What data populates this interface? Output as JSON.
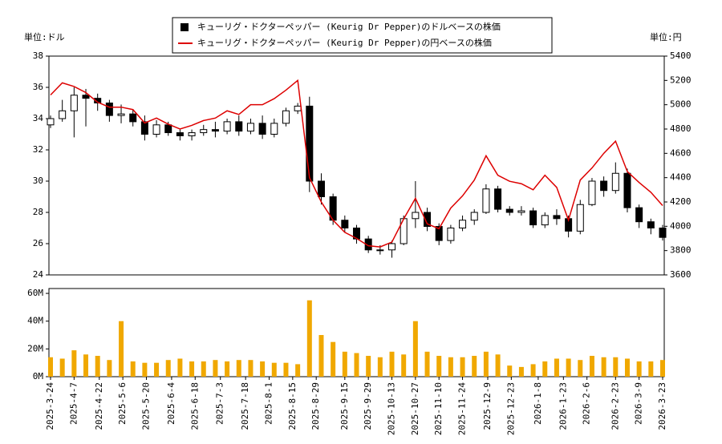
{
  "chart_data": [
    {
      "type": "candlestick",
      "y_label": "単位:ドル",
      "y2_label": "単位:円",
      "x": [
        "2025-3-24",
        "2025-3-31",
        "2025-4-7",
        "2025-4-14",
        "2025-4-21",
        "2025-4-28",
        "2025-5-5",
        "2025-5-12",
        "2025-5-19",
        "2025-5-26",
        "2025-6-2",
        "2025-6-9",
        "2025-6-16",
        "2025-6-23",
        "2025-6-30",
        "2025-7-7",
        "2025-7-14",
        "2025-7-21",
        "2025-7-28",
        "2025-8-4",
        "2025-8-11",
        "2025-8-18",
        "2025-8-25",
        "2025-9-1",
        "2025-9-8",
        "2025-9-15",
        "2025-9-22",
        "2025-9-29",
        "2025-10-6",
        "2025-10-13",
        "2025-10-20",
        "2025-10-27",
        "2025-11-3",
        "2025-11-10",
        "2025-11-17",
        "2025-11-24",
        "2025-12-1",
        "2025-12-8",
        "2025-12-15",
        "2025-12-22",
        "2025-12-29",
        "2026-1-5",
        "2026-1-12",
        "2026-1-19",
        "2026-1-26",
        "2026-2-2",
        "2026-2-9",
        "2026-2-16",
        "2026-2-23",
        "2026-3-2",
        "2026-3-9",
        "2026-3-16",
        "2026-3-23"
      ],
      "xlim": [
        "2025-3-24",
        "2026-3-23"
      ],
      "series": [
        {
          "name": "キューリグ・ドクターペッパー (Keurig Dr Pepper)のドルベースの株価",
          "color": "#000000",
          "open": [
            33.6,
            34.0,
            34.5,
            35.5,
            35.3,
            35.0,
            34.2,
            34.3,
            33.8,
            33.0,
            33.6,
            33.1,
            32.9,
            33.1,
            33.3,
            33.2,
            33.8,
            33.2,
            33.7,
            33.0,
            33.7,
            34.5,
            34.8,
            30.0,
            29.0,
            27.5,
            27.0,
            26.3,
            25.6,
            25.6,
            26.0,
            27.6,
            28.0,
            27.1,
            26.2,
            27.0,
            27.5,
            28.0,
            29.5,
            28.2,
            28.0,
            28.1,
            27.2,
            27.8,
            27.6,
            26.8,
            28.5,
            30.0,
            29.4,
            30.5,
            28.3,
            27.4,
            27.0
          ],
          "high": [
            34.2,
            35.2,
            36.0,
            35.9,
            35.6,
            35.2,
            34.9,
            34.6,
            34.2,
            33.9,
            33.8,
            33.3,
            33.3,
            33.6,
            33.8,
            34.0,
            34.2,
            34.0,
            34.2,
            34.0,
            34.7,
            35.0,
            35.4,
            30.5,
            29.2,
            27.8,
            27.2,
            26.5,
            25.9,
            26.2,
            27.8,
            30.0,
            28.3,
            27.3,
            27.2,
            27.8,
            28.2,
            29.8,
            29.7,
            28.4,
            28.4,
            28.3,
            28.0,
            28.2,
            27.8,
            28.8,
            30.2,
            30.3,
            31.2,
            30.8,
            28.5,
            27.6,
            27.2
          ],
          "low": [
            33.4,
            33.8,
            32.8,
            33.5,
            34.5,
            33.8,
            33.7,
            33.5,
            32.6,
            32.8,
            32.9,
            32.6,
            32.6,
            32.9,
            32.8,
            33.0,
            32.9,
            33.0,
            32.7,
            32.8,
            33.5,
            34.3,
            29.3,
            28.5,
            27.2,
            26.7,
            26.0,
            25.4,
            25.3,
            25.1,
            25.9,
            27.0,
            26.8,
            25.9,
            26.0,
            26.8,
            27.2,
            27.9,
            28.0,
            27.8,
            27.8,
            27.0,
            27.0,
            27.2,
            26.4,
            26.6,
            28.4,
            29.0,
            29.2,
            28.0,
            27.0,
            26.6,
            26.2
          ],
          "close": [
            34.0,
            34.5,
            35.5,
            35.3,
            35.0,
            34.2,
            34.3,
            33.8,
            33.0,
            33.6,
            33.1,
            32.9,
            33.1,
            33.3,
            33.2,
            33.8,
            33.2,
            33.7,
            33.0,
            33.7,
            34.5,
            34.8,
            30.0,
            29.0,
            27.5,
            27.0,
            26.3,
            25.6,
            25.6,
            26.0,
            27.6,
            28.0,
            27.1,
            26.2,
            27.0,
            27.5,
            28.0,
            29.5,
            28.2,
            28.0,
            28.1,
            27.2,
            27.8,
            27.6,
            26.8,
            28.5,
            30.0,
            29.4,
            30.5,
            28.3,
            27.4,
            27.0,
            26.4
          ]
        },
        {
          "name": "キューリグ・ドクターペッパー (Keurig Dr Pepper)の円ベースの株価",
          "color": "#dd0000",
          "axis": "y2",
          "values": [
            5080,
            5180,
            5150,
            5100,
            5020,
            4980,
            4980,
            4960,
            4850,
            4890,
            4840,
            4800,
            4830,
            4870,
            4890,
            4950,
            4920,
            5000,
            5000,
            5050,
            5120,
            5200,
            4400,
            4200,
            4050,
            3950,
            3900,
            3840,
            3830,
            3870,
            4060,
            4230,
            4020,
            3980,
            4150,
            4250,
            4380,
            4580,
            4420,
            4370,
            4350,
            4300,
            4420,
            4320,
            4050,
            4380,
            4480,
            4600,
            4700,
            4450,
            4360,
            4280,
            4170
          ]
        }
      ],
      "ylim": [
        24,
        38
      ],
      "yticks": [
        24,
        26,
        28,
        30,
        32,
        34,
        36,
        38
      ],
      "y2lim": [
        3600,
        5400
      ],
      "y2ticks": [
        3600,
        3800,
        4000,
        4200,
        4400,
        4600,
        4800,
        5000,
        5200,
        5400
      ]
    },
    {
      "type": "bar",
      "color": "#f0a800",
      "x": [
        "2025-3-24",
        "2025-3-31",
        "2025-4-7",
        "2025-4-14",
        "2025-4-21",
        "2025-4-28",
        "2025-5-5",
        "2025-5-12",
        "2025-5-19",
        "2025-5-26",
        "2025-6-2",
        "2025-6-9",
        "2025-6-16",
        "2025-6-23",
        "2025-6-30",
        "2025-7-7",
        "2025-7-14",
        "2025-7-21",
        "2025-7-28",
        "2025-8-4",
        "2025-8-11",
        "2025-8-18",
        "2025-8-25",
        "2025-9-1",
        "2025-9-8",
        "2025-9-15",
        "2025-9-22",
        "2025-9-29",
        "2025-10-6",
        "2025-10-13",
        "2025-10-20",
        "2025-10-27",
        "2025-11-3",
        "2025-11-10",
        "2025-11-17",
        "2025-11-24",
        "2025-12-1",
        "2025-12-8",
        "2025-12-15",
        "2025-12-22",
        "2025-12-29",
        "2026-1-5",
        "2026-1-12",
        "2026-1-19",
        "2026-1-26",
        "2026-2-2",
        "2026-2-9",
        "2026-2-16",
        "2026-2-23",
        "2026-3-2",
        "2026-3-9",
        "2026-3-16",
        "2026-3-23"
      ],
      "xlim": [
        "2025-3-24",
        "2026-3-23"
      ],
      "values": [
        14,
        13,
        19,
        16,
        15,
        12,
        40,
        11,
        10,
        10,
        12,
        13,
        11,
        11,
        12,
        11,
        12,
        12,
        11,
        10,
        10,
        9,
        55,
        30,
        25,
        18,
        17,
        15,
        14,
        18,
        16,
        40,
        18,
        15,
        14,
        14,
        15,
        18,
        16,
        8,
        7,
        9,
        11,
        13,
        13,
        12,
        15,
        14,
        14,
        13,
        11,
        11,
        12
      ],
      "ylim": [
        0,
        63.5
      ],
      "yticks": [
        {
          "value": 0,
          "label": "0M"
        },
        {
          "value": 20,
          "label": "20M"
        },
        {
          "value": 40,
          "label": "40M"
        },
        {
          "value": 60,
          "label": "60M"
        }
      ],
      "xticks": [
        "2025-3-24",
        "2025-4-7",
        "2025-4-22",
        "2025-5-6",
        "2025-5-20",
        "2025-6-4",
        "2025-6-18",
        "2025-7-3",
        "2025-7-18",
        "2025-8-1",
        "2025-8-15",
        "2025-8-29",
        "2025-9-15",
        "2025-9-29",
        "2025-10-13",
        "2025-10-27",
        "2025-11-10",
        "2025-11-24",
        "2025-12-9",
        "2025-12-23",
        "2026-1-8",
        "2026-1-23",
        "2026-2-6",
        "2026-2-23",
        "2026-3-9",
        "2026-3-23"
      ]
    }
  ]
}
